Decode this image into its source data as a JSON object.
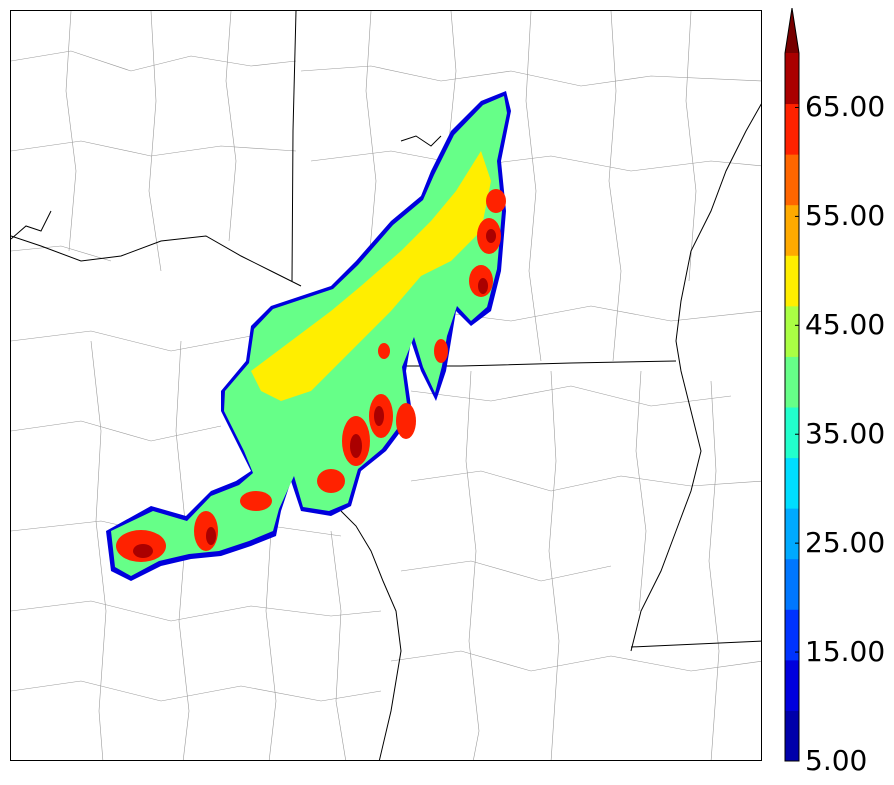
{
  "colorbar": {
    "min": 5.0,
    "max": 70.0,
    "step": 5.0,
    "extend": "max",
    "tick_labels": [
      "5.00",
      "15.00",
      "25.00",
      "35.00",
      "45.00",
      "55.00",
      "65.00"
    ],
    "tick_values": [
      5,
      15,
      25,
      35,
      45,
      55,
      65
    ],
    "colors": [
      "#0000aa",
      "#0000dd",
      "#0033ff",
      "#0077ff",
      "#00aaff",
      "#00ddff",
      "#22ffcc",
      "#66ff88",
      "#aaff44",
      "#ffee00",
      "#ffaa00",
      "#ff6600",
      "#ff2200",
      "#aa0000",
      "#770000"
    ]
  },
  "map": {
    "state_line_color": "#000000",
    "county_line_color": "#9a9a9a",
    "background": "#ffffff"
  }
}
